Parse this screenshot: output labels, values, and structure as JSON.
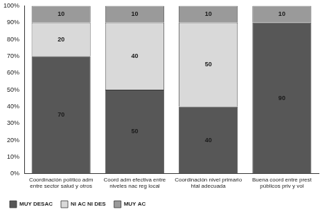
{
  "chart_data": {
    "type": "bar",
    "stacked": true,
    "data_labels": true,
    "grid": false,
    "legend": "bottom-left",
    "categories": [
      "Coordinación político adm entre sector salud y otros",
      "Coord adm efectiva entre niveles nac reg local",
      "Coordinación nivel primario htal adecuada",
      "Buena coord entre prest públicos priv y vol"
    ],
    "series": [
      {
        "name": "MUY DESAC",
        "color": "#575757",
        "values": [
          70,
          50,
          40,
          90
        ]
      },
      {
        "name": "NI AC NI DES",
        "color": "#d9d9d9",
        "values": [
          20,
          40,
          50,
          null
        ]
      },
      {
        "name": "MUY AC",
        "color": "#9a9a9a",
        "values": [
          10,
          10,
          10,
          10
        ]
      }
    ],
    "ylim": [
      0,
      100
    ],
    "yticks": [
      {
        "value": 0,
        "label": "0%"
      },
      {
        "value": 10,
        "label": "10%"
      },
      {
        "value": 20,
        "label": "20%"
      },
      {
        "value": 30,
        "label": "30%"
      },
      {
        "value": 40,
        "label": "40%"
      },
      {
        "value": 50,
        "label": "50%"
      },
      {
        "value": 60,
        "label": "60%"
      },
      {
        "value": 70,
        "label": "70%"
      },
      {
        "value": 80,
        "label": "80%"
      },
      {
        "value": 90,
        "label": "90%"
      },
      {
        "value": 100,
        "label": "100%"
      }
    ]
  }
}
